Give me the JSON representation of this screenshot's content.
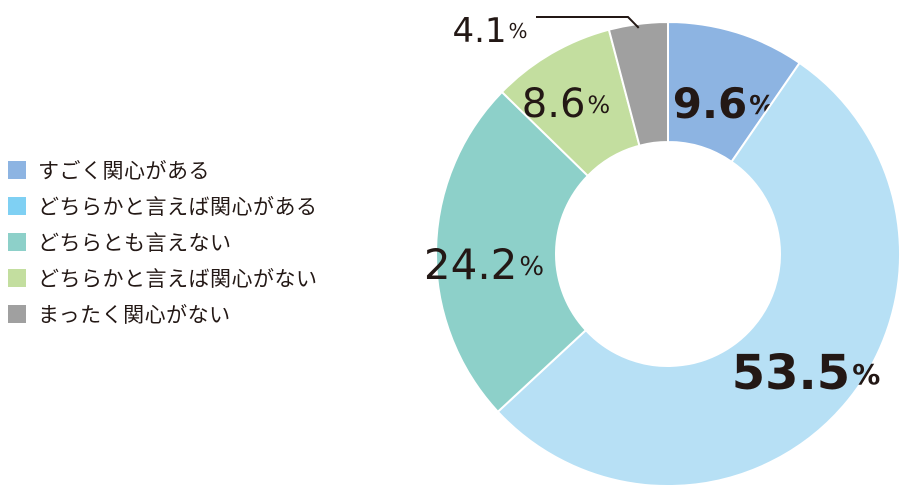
{
  "chart_data": {
    "type": "pie",
    "variant": "donut",
    "start_angle_deg": 0,
    "direction": "clockwise",
    "unit": "%",
    "series": [
      {
        "name": "すごく関心がある",
        "value": 9.6,
        "label": "9.6",
        "color": "#8db4e2",
        "bold": true
      },
      {
        "name": "どちらかと言えば関心がある",
        "value": 53.5,
        "label": "53.5",
        "color": "#b7e0f5",
        "bold": true
      },
      {
        "name": "どちらとも言えない",
        "value": 24.2,
        "label": "24.2",
        "color": "#8dd0c9",
        "bold": false
      },
      {
        "name": "どちらかと言えば関心がない",
        "value": 8.6,
        "label": "8.6",
        "color": "#c3de9f",
        "bold": false
      },
      {
        "name": "まったく関心がない",
        "value": 4.1,
        "label": "4.1",
        "color": "#a0a0a0",
        "bold": false
      }
    ],
    "legend": {
      "placement": "left",
      "colors": [
        "#8db4e2",
        "#7fd0f3",
        "#8dd0c9",
        "#c3de9f",
        "#a0a0a0"
      ]
    }
  }
}
